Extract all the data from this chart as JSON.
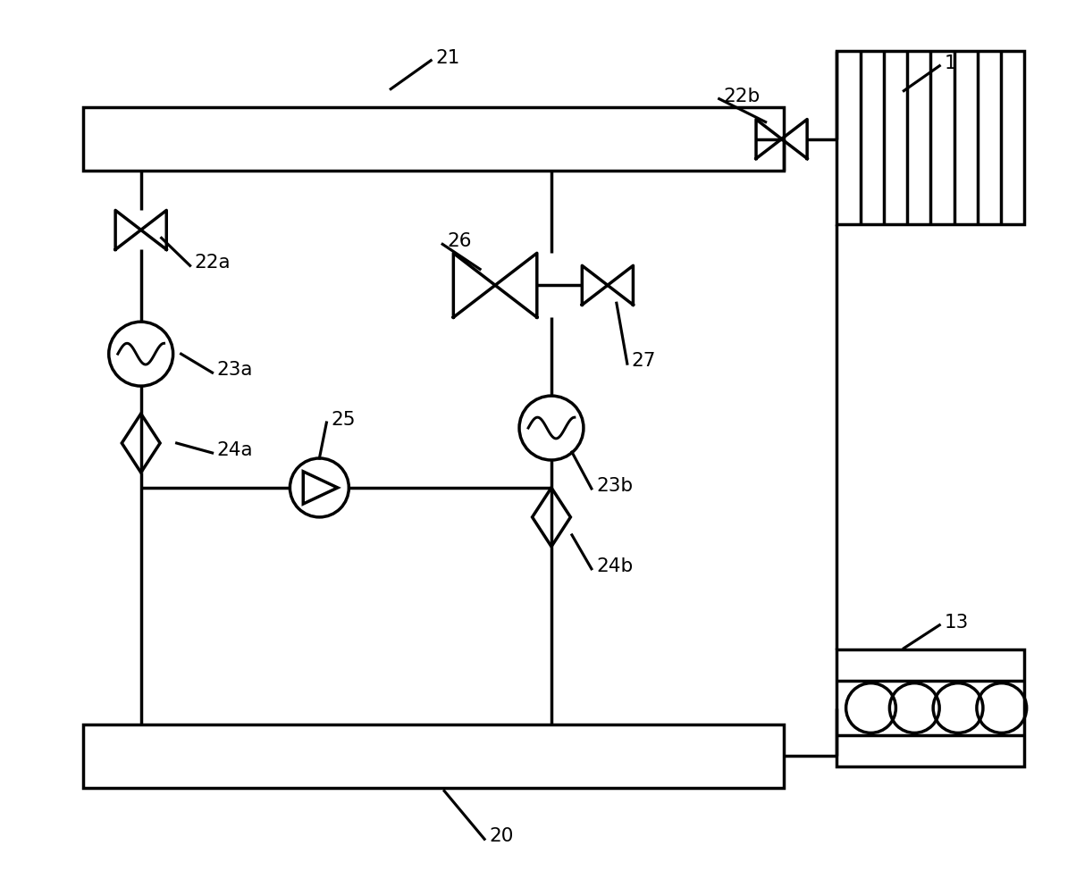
{
  "bg": "#ffffff",
  "lc": "#000000",
  "lw": 2.5,
  "fw": 12.04,
  "fh": 10.04,
  "xmax": 12.0,
  "ymax": 10.0,
  "upper_bus": [
    0.9,
    8.1,
    7.85,
    0.72
  ],
  "lower_bus": [
    0.9,
    1.18,
    7.85,
    0.72
  ],
  "fc": [
    9.35,
    7.5,
    2.1,
    1.95,
    7
  ],
  "motor": [
    9.35,
    1.42,
    2.1,
    1.32,
    4
  ],
  "valve_22a": [
    1.55,
    7.44
  ],
  "valve_22b": [
    8.73,
    8.46
  ],
  "hx_23a": [
    1.55,
    6.05
  ],
  "hx_23b": [
    6.15,
    5.22
  ],
  "filter_24a": [
    1.55,
    5.05
  ],
  "filter_24b": [
    6.15,
    4.22
  ],
  "pump_25": [
    3.55,
    4.55
  ],
  "dvalve_26": [
    5.52,
    6.82
  ],
  "valve_27": [
    6.78,
    6.82
  ],
  "labels": [
    [
      "1",
      10.55,
      9.32,
      10.1,
      9.0
    ],
    [
      "13",
      10.55,
      3.05,
      10.1,
      2.75
    ],
    [
      "20",
      5.45,
      0.65,
      4.95,
      1.15
    ],
    [
      "21",
      4.85,
      9.38,
      4.35,
      9.02
    ],
    [
      "22a",
      2.15,
      7.08,
      1.78,
      7.35
    ],
    [
      "22b",
      8.08,
      8.95,
      8.55,
      8.65
    ],
    [
      "23a",
      2.4,
      5.88,
      2.0,
      6.05
    ],
    [
      "23b",
      6.65,
      4.58,
      6.38,
      4.95
    ],
    [
      "24a",
      2.4,
      4.98,
      1.95,
      5.05
    ],
    [
      "24b",
      6.65,
      3.68,
      6.38,
      4.02
    ],
    [
      "25",
      3.68,
      5.32,
      3.55,
      4.88
    ],
    [
      "26",
      4.98,
      7.32,
      5.35,
      7.0
    ],
    [
      "27",
      7.05,
      5.98,
      6.88,
      6.62
    ]
  ]
}
